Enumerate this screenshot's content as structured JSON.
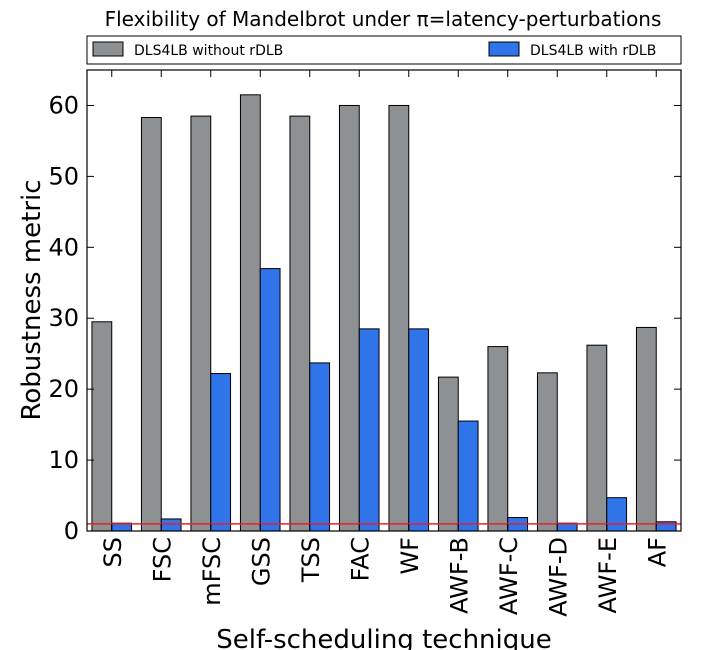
{
  "chart_data": {
    "type": "bar",
    "title": "Flexibility of Mandelbrot under π=latency-perturbations",
    "xlabel": "Self-scheduling technique",
    "ylabel": "Robustness metric",
    "ylim": [
      0,
      65
    ],
    "yticks": [
      0,
      10,
      20,
      30,
      40,
      50,
      60
    ],
    "grid": false,
    "legend_placement": "top",
    "reference_line": {
      "y": 1,
      "color": "#e8202a"
    },
    "categories": [
      "SS",
      "FSC",
      "mFSC",
      "GSS",
      "TSS",
      "FAC",
      "WF",
      "AWF-B",
      "AWF-C",
      "AWF-D",
      "AWF-E",
      "AF"
    ],
    "series": [
      {
        "name": "DLS4LB without rDLB",
        "color": "#8d9193",
        "values": [
          29.5,
          58.3,
          58.5,
          61.5,
          58.5,
          60.0,
          60.0,
          21.7,
          26.0,
          22.3,
          26.2,
          28.7
        ]
      },
      {
        "name": "DLS4LB with rDLB",
        "color": "#2f74e8",
        "values": [
          1.1,
          1.7,
          22.2,
          37.0,
          23.7,
          28.5,
          28.5,
          15.5,
          1.9,
          1.1,
          4.7,
          1.3
        ]
      }
    ]
  }
}
